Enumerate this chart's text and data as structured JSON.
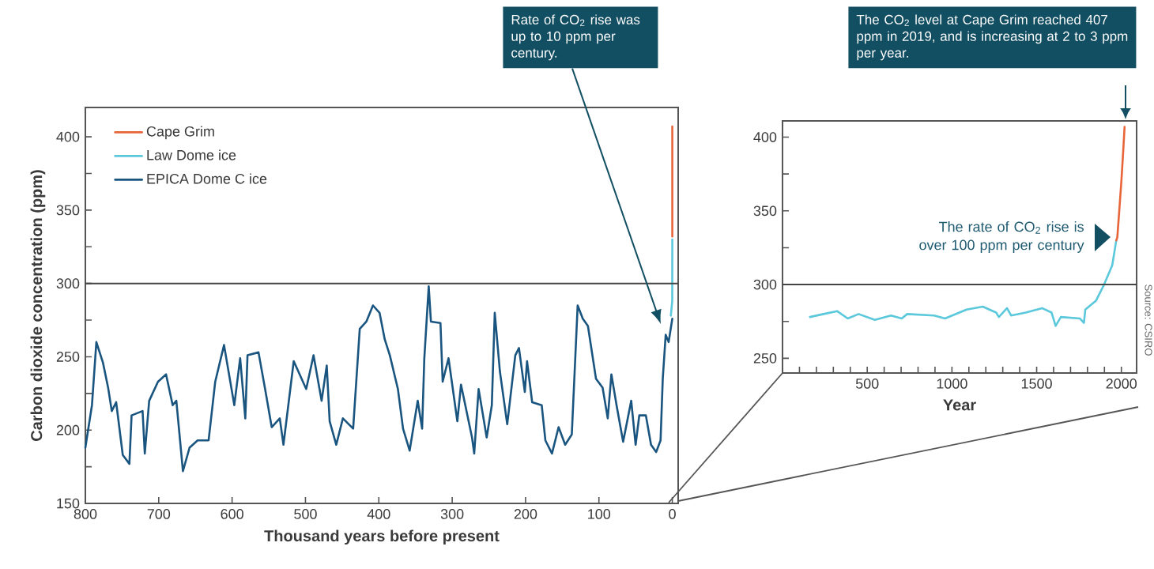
{
  "chart_data": [
    {
      "type": "line",
      "xlabel": "Thousand years before present",
      "ylabel": "Carbon dioxide concentration (ppm)",
      "xlim": [
        800,
        -8
      ],
      "ylim": [
        150,
        420
      ],
      "xticks": [
        800,
        700,
        600,
        500,
        400,
        300,
        200,
        100,
        0
      ],
      "yticks": [
        150,
        {
          "value": 175,
          "label": null
        },
        200,
        {
          "value": 225,
          "label": null
        },
        250,
        {
          "value": 275,
          "label": null
        },
        300,
        {
          "value": 325,
          "label": null
        },
        350,
        {
          "value": 375,
          "label": null
        },
        400
      ],
      "legend": "top left",
      "series": [
        {
          "name": "Cape Grim",
          "color": "#e8653a",
          "x": [
            0,
            0
          ],
          "values": [
            332,
            407
          ]
        },
        {
          "name": "Law Dome ice",
          "color": "#5bc8dc",
          "x": [
            2,
            0.1,
            0
          ],
          "values": [
            278,
            288,
            330
          ]
        },
        {
          "name": "EPICA Dome C ice",
          "color": "#1a5580",
          "x": [
            800,
            791,
            785,
            776,
            769,
            764,
            758,
            749,
            740,
            737,
            722,
            719,
            713,
            701,
            690,
            681,
            676,
            667,
            658,
            647,
            632,
            623,
            611,
            597,
            589,
            582,
            579,
            564,
            555,
            546,
            535,
            530,
            516,
            499,
            489,
            478,
            471,
            467,
            458,
            449,
            435,
            426,
            417,
            408,
            399,
            392,
            385,
            374,
            367,
            358,
            347,
            341,
            338,
            332,
            329,
            316,
            313,
            305,
            293,
            288,
            273,
            270,
            264,
            253,
            246,
            242,
            235,
            225,
            214,
            209,
            201,
            198,
            191,
            178,
            173,
            164,
            155,
            146,
            137,
            129,
            122,
            115,
            104,
            95,
            88,
            83,
            76,
            67,
            56,
            50,
            45,
            36,
            29,
            22,
            16,
            13,
            9,
            5,
            0
          ],
          "values": [
            188,
            217,
            260,
            246,
            229,
            213,
            219,
            183,
            177,
            210,
            213,
            184,
            220,
            233,
            238,
            217,
            220,
            172,
            188,
            193,
            193,
            233,
            258,
            217,
            249,
            208,
            251,
            253,
            228,
            202,
            208,
            190,
            247,
            228,
            251,
            220,
            244,
            206,
            190,
            208,
            201,
            269,
            274,
            285,
            280,
            262,
            251,
            228,
            201,
            186,
            220,
            201,
            249,
            298,
            274,
            273,
            233,
            249,
            206,
            231,
            195,
            184,
            228,
            195,
            217,
            280,
            240,
            204,
            251,
            256,
            226,
            247,
            219,
            217,
            193,
            184,
            202,
            190,
            197,
            285,
            276,
            271,
            235,
            229,
            208,
            238,
            217,
            192,
            220,
            190,
            210,
            210,
            190,
            185,
            193,
            235,
            265,
            260,
            276
          ]
        }
      ],
      "ref_lines": [
        {
          "axis": "y",
          "value": 300,
          "color": "#444444"
        }
      ],
      "annotations": [
        "Rate of CO$_{2}$ rise was up to 10 ppm per century."
      ]
    },
    {
      "type": "line",
      "xlabel": "Year",
      "xlim": [
        0,
        2090
      ],
      "ylim": [
        240,
        411
      ],
      "xticks": [
        {
          "value": 100,
          "label": null
        },
        {
          "value": 200,
          "label": null
        },
        {
          "value": 300,
          "label": null
        },
        {
          "value": 400,
          "label": null
        },
        500,
        {
          "value": 600,
          "label": null
        },
        {
          "value": 700,
          "label": null
        },
        {
          "value": 800,
          "label": null
        },
        {
          "value": 900,
          "label": null
        },
        1000,
        {
          "value": 1100,
          "label": null
        },
        {
          "value": 1200,
          "label": null
        },
        {
          "value": 1300,
          "label": null
        },
        {
          "value": 1400,
          "label": null
        },
        1500,
        {
          "value": 1600,
          "label": null
        },
        {
          "value": 1700,
          "label": null
        },
        {
          "value": 1800,
          "label": null
        },
        {
          "value": 1900,
          "label": null
        },
        2000
      ],
      "yticks": [
        250,
        {
          "value": 275,
          "label": null
        },
        300,
        {
          "value": 325,
          "label": null
        },
        350,
        {
          "value": 375,
          "label": null
        },
        400
      ],
      "series": [
        {
          "color": "#5bc8dc",
          "x": [
            162,
            242,
            322,
            385,
            449,
            545,
            640,
            704,
            736,
            895,
            959,
            1086,
            1182,
            1261,
            1277,
            1325,
            1349,
            1436,
            1532,
            1588,
            1612,
            1643,
            1755,
            1779,
            1787,
            1850,
            1898,
            1946,
            1970
          ],
          "values": [
            278,
            280,
            282,
            277,
            280,
            276,
            279,
            277,
            280,
            279,
            277,
            283,
            285,
            281,
            278,
            284,
            279,
            281,
            284,
            281,
            272,
            278,
            277,
            274,
            283,
            289,
            300,
            313,
            330
          ]
        },
        {
          "color": "#e8653a",
          "x": [
            1970,
            1976,
            1990,
            2000,
            2010,
            2019
          ],
          "values": [
            330,
            332,
            354,
            370,
            389,
            407
          ]
        }
      ],
      "ref_lines": [
        {
          "axis": "y",
          "value": 300,
          "color": "#444444"
        }
      ],
      "annotations": [
        "The CO$_{2}$ level at Cape Grim reached 407 ppm in 2019, and is increasing at 2 to 3 ppm per year.",
        "The rate of CO$_{2}$ rise is over 100 ppm per century",
        "Source: CSIRO"
      ]
    }
  ]
}
